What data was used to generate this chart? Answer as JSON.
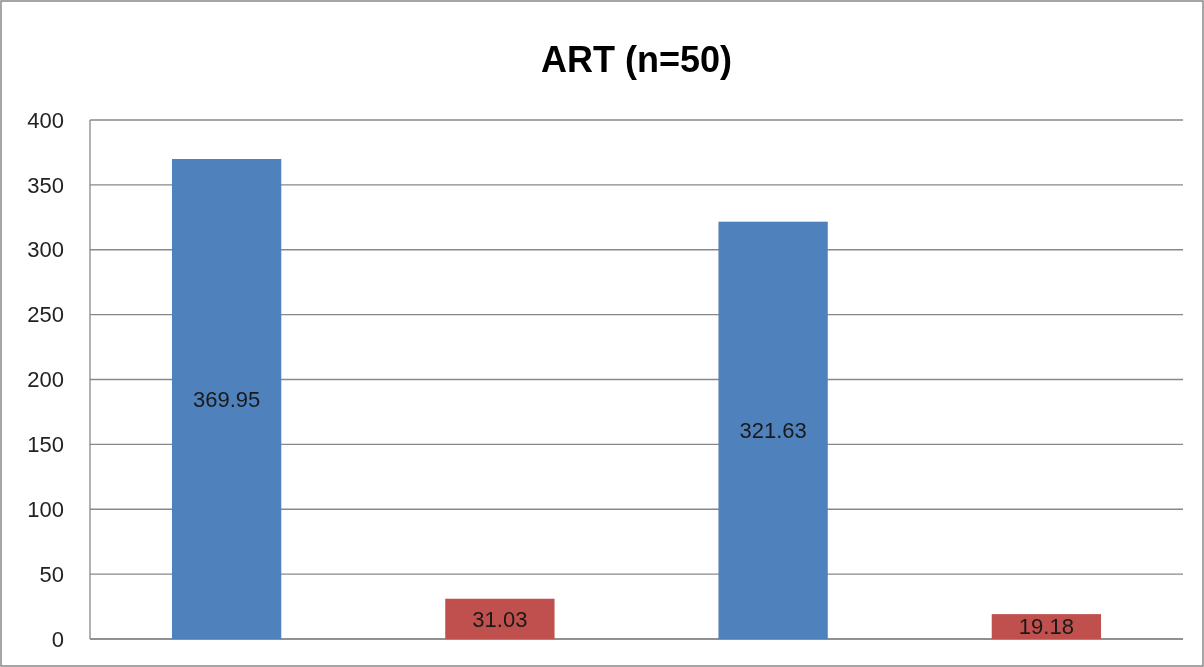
{
  "chart_data": {
    "type": "bar",
    "title": "ART (n=50)",
    "categories": [
      null,
      null,
      null,
      null
    ],
    "values": [
      369.95,
      31.03,
      321.63,
      19.18
    ],
    "colors": [
      "#4f81bd",
      "#c0504d",
      "#4f81bd",
      "#c0504d"
    ],
    "ylim": [
      0,
      400
    ],
    "yticks": [
      0,
      50,
      100,
      150,
      200,
      250,
      300,
      350,
      400
    ],
    "grid": "y",
    "data_labels": true
  }
}
